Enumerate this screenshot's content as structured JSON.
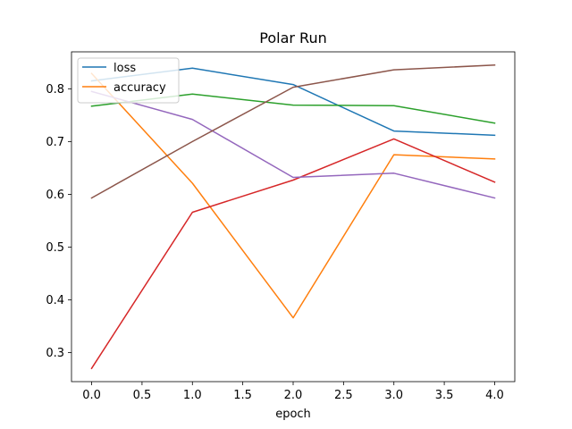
{
  "chart_data": {
    "type": "line",
    "title": "Polar Run",
    "xlabel": "epoch",
    "ylabel": "",
    "xlim": [
      -0.2,
      4.2
    ],
    "ylim": [
      0.245,
      0.87
    ],
    "xticks": [
      0.0,
      0.5,
      1.0,
      1.5,
      2.0,
      2.5,
      3.0,
      3.5,
      4.0
    ],
    "xtick_labels": [
      "0.0",
      "0.5",
      "1.0",
      "1.5",
      "2.0",
      "2.5",
      "3.0",
      "3.5",
      "4.0"
    ],
    "yticks": [
      0.3,
      0.4,
      0.5,
      0.6,
      0.7,
      0.8
    ],
    "ytick_labels": [
      "0.3",
      "0.4",
      "0.5",
      "0.6",
      "0.7",
      "0.8"
    ],
    "grid": false,
    "legend_position": "top-left",
    "x": [
      0,
      1,
      2,
      3,
      4
    ],
    "series": [
      {
        "name": "loss",
        "color": "#1f77b4",
        "values": [
          0.815,
          0.839,
          0.808,
          0.72,
          0.712
        ]
      },
      {
        "name": "accuracy",
        "color": "#ff7f0e",
        "values": [
          0.829,
          0.621,
          0.366,
          0.675,
          0.667
        ]
      },
      {
        "color": "#2ca02c",
        "values": [
          0.767,
          0.79,
          0.769,
          0.768,
          0.735
        ]
      },
      {
        "color": "#d62728",
        "values": [
          0.27,
          0.566,
          0.627,
          0.705,
          0.623
        ]
      },
      {
        "color": "#9467bd",
        "values": [
          0.795,
          0.742,
          0.632,
          0.64,
          0.593
        ]
      },
      {
        "color": "#8c564b",
        "values": [
          0.593,
          0.7,
          0.803,
          0.836,
          0.845
        ]
      }
    ]
  }
}
